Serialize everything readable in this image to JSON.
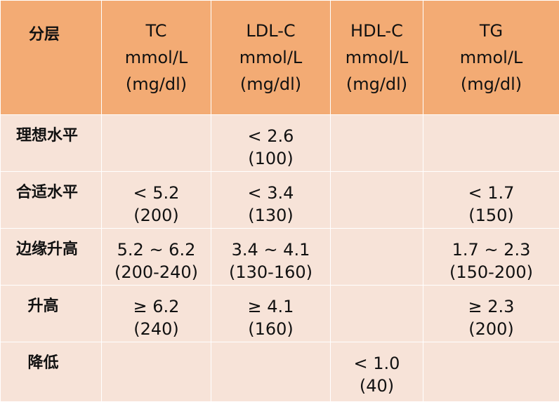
{
  "header": {
    "corner": "分层",
    "columns": [
      {
        "name": "TC",
        "unit": "mmol/L",
        "alt_unit": "(mg/dl)"
      },
      {
        "name": "LDL-C",
        "unit": "mmol/L",
        "alt_unit": "(mg/dl)"
      },
      {
        "name": "HDL-C",
        "unit": "mmol/L",
        "alt_unit": "(mg/dl)"
      },
      {
        "name": "TG",
        "unit": "mmol/L",
        "alt_unit": "(mg/dl)"
      }
    ]
  },
  "rows": [
    {
      "label": "理想水平",
      "cells": [
        {
          "value": "",
          "alt": ""
        },
        {
          "value": "< 2.6",
          "alt": "(100)"
        },
        {
          "value": "",
          "alt": ""
        },
        {
          "value": "",
          "alt": ""
        }
      ]
    },
    {
      "label": "合适水平",
      "cells": [
        {
          "value": "< 5.2",
          "alt": "(200)"
        },
        {
          "value": "< 3.4",
          "alt": "(130)"
        },
        {
          "value": "",
          "alt": ""
        },
        {
          "value": "< 1.7",
          "alt": "(150)"
        }
      ]
    },
    {
      "label": "边缘升高",
      "cells": [
        {
          "value": "5.2 ~ 6.2",
          "alt": "(200-240)"
        },
        {
          "value": "3.4 ~ 4.1",
          "alt": "(130-160)"
        },
        {
          "value": "",
          "alt": ""
        },
        {
          "value": "1.7 ~ 2.3",
          "alt": "(150-200)"
        }
      ]
    },
    {
      "label": "升高",
      "cells": [
        {
          "value": "≥ 6.2",
          "alt": "(240)"
        },
        {
          "value": "≥ 4.1",
          "alt": "(160)"
        },
        {
          "value": "",
          "alt": ""
        },
        {
          "value": "≥ 2.3",
          "alt": "(200)"
        }
      ]
    },
    {
      "label": "降低",
      "cells": [
        {
          "value": "",
          "alt": ""
        },
        {
          "value": "",
          "alt": ""
        },
        {
          "value": "< 1.0",
          "alt": "(40)"
        },
        {
          "value": "",
          "alt": ""
        }
      ]
    }
  ]
}
